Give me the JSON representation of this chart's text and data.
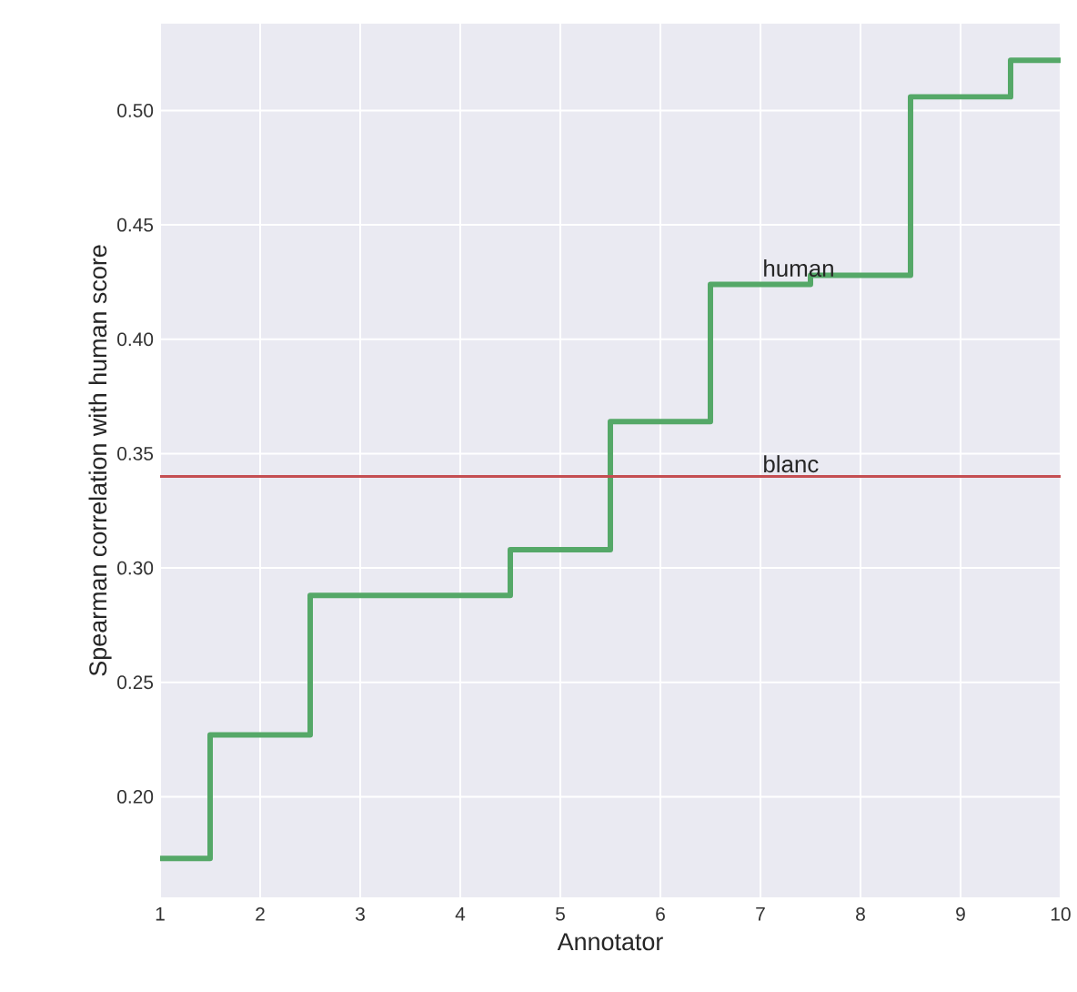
{
  "chart_data": {
    "type": "step",
    "xlabel": "Annotator",
    "ylabel": "Spearman correlation with human score",
    "x": [
      1,
      2,
      3,
      4,
      5,
      6,
      7,
      8,
      9,
      10
    ],
    "series": [
      {
        "name": "human",
        "color": "#55a868",
        "values": [
          0.173,
          0.227,
          0.288,
          0.288,
          0.308,
          0.364,
          0.424,
          0.428,
          0.506,
          0.522
        ]
      }
    ],
    "xlim": [
      1,
      10
    ],
    "ylim": [
      0.156,
      0.538
    ],
    "xticks": [
      1,
      2,
      3,
      4,
      5,
      6,
      7,
      8,
      9,
      10
    ],
    "yticks": [
      {
        "value": 0.2,
        "label": "0.20"
      },
      {
        "value": 0.25,
        "label": "0.25"
      },
      {
        "value": 0.3,
        "label": "0.30"
      },
      {
        "value": 0.35,
        "label": "0.35"
      },
      {
        "value": 0.4,
        "label": "0.40"
      },
      {
        "value": 0.45,
        "label": "0.45"
      },
      {
        "value": 0.5,
        "label": "0.50"
      }
    ],
    "ref_lines": [
      {
        "axis": "y",
        "value": 0.34,
        "color": "#c44e52",
        "label": "blanc"
      }
    ],
    "grid": true
  }
}
